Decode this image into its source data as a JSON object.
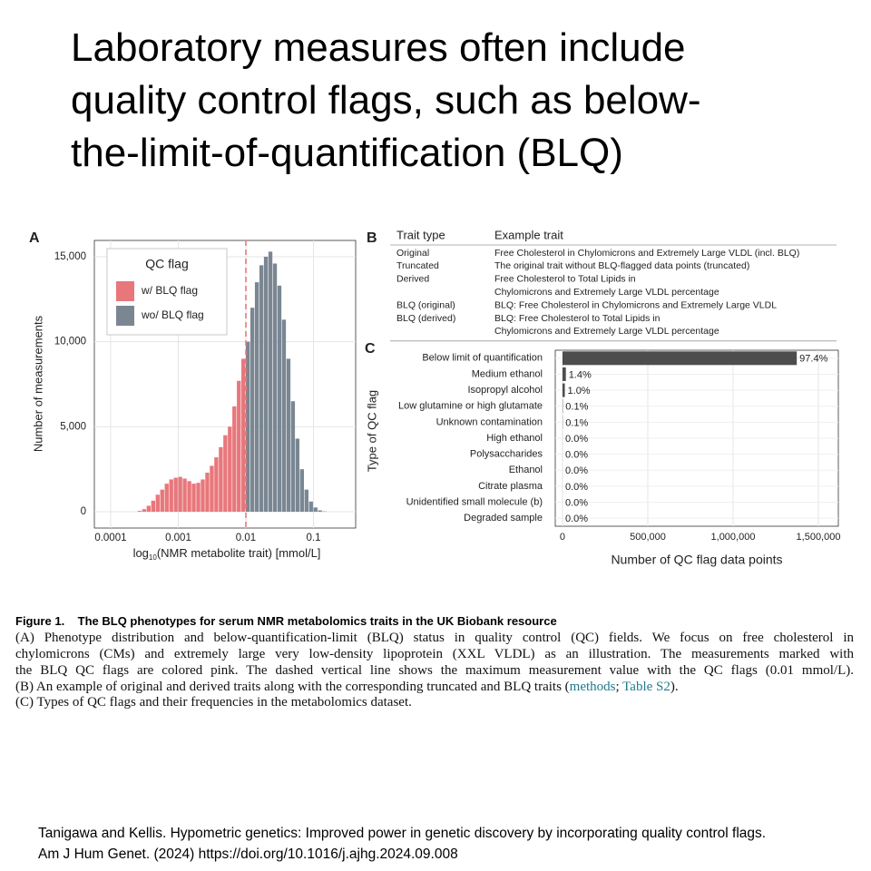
{
  "title": [
    "Laboratory measures often include",
    "quality control flags, such as below-",
    "the-limit-of-quantification (BLQ)"
  ],
  "chart_data": [
    {
      "type": "histogram",
      "panel_label": "A",
      "bins": [
        0.000251,
        0.000293,
        0.000341,
        0.000398,
        0.000464,
        0.000541,
        0.000631,
        0.000736,
        0.000858,
        0.001,
        0.001166,
        0.001359,
        0.001585,
        0.001848,
        0.002154,
        0.002512,
        0.002929,
        0.003415,
        0.003981,
        0.004642,
        0.005412,
        0.00631,
        0.007356,
        0.008577,
        0.01,
        0.01166,
        0.01359,
        0.01585,
        0.01848,
        0.02154,
        0.02512,
        0.02929,
        0.03415,
        0.03981,
        0.04642,
        0.05412,
        0.0631,
        0.07356,
        0.08577,
        0.1,
        0.1166,
        0.1359,
        0.1585
      ],
      "series": [
        {
          "name": "w/ BLQ flag",
          "color": "#e8777c",
          "values": [
            50,
            150,
            350,
            650,
            1000,
            1300,
            1650,
            1900,
            2000,
            2050,
            1950,
            1800,
            1650,
            1700,
            1900,
            2300,
            2700,
            3200,
            3800,
            4500,
            5000,
            6200,
            7700,
            9000,
            0,
            0,
            0,
            0,
            0,
            0,
            0,
            0,
            0,
            0,
            0,
            0,
            0,
            0,
            0,
            0,
            0,
            0
          ]
        },
        {
          "name": "wo/ BLQ flag",
          "color": "#7a8793",
          "values": [
            0,
            0,
            0,
            0,
            0,
            0,
            0,
            0,
            0,
            0,
            0,
            0,
            0,
            0,
            0,
            0,
            0,
            0,
            0,
            0,
            0,
            0,
            0,
            0,
            10000,
            12000,
            13500,
            14500,
            15000,
            15300,
            14600,
            13300,
            11300,
            9000,
            6500,
            4300,
            2500,
            1300,
            600,
            250,
            80,
            20
          ]
        }
      ],
      "xlim": [
        5.75e-05,
        0.42
      ],
      "log_x": true,
      "xticks": [
        0.0001,
        0.001,
        0.01,
        0.1
      ],
      "ylim": [
        -960,
        15960
      ],
      "yticks": [
        0,
        {
          "value": 5000,
          "label": "5,000"
        },
        {
          "value": 10000,
          "label": "10,000"
        },
        {
          "value": 15000,
          "label": "15,000"
        }
      ],
      "x_label": {
        "log": "log",
        "base": "10",
        "rest": "(NMR metabolite trait) [mmol/L]"
      },
      "y_label": "Number of measurements",
      "legend_title": "QC flag",
      "legend": "top-left",
      "grid": true,
      "vline": 0.01,
      "vline_color": "#e8777c"
    },
    {
      "type": "barh",
      "panel_label": "C",
      "categories": [
        "Below limit of quantification",
        "Medium ethanol",
        "Isopropyl alcohol",
        "Low glutamine or high glutamate",
        "Unknown contamination",
        "High ethanol",
        "Polysaccharides",
        "Ethanol",
        "Citrate plasma",
        "Unidentified small molecule (b)",
        "Degraded sample"
      ],
      "values": [
        1373300,
        19700,
        13500,
        1700,
        1100,
        250,
        150,
        100,
        80,
        60,
        20
      ],
      "value_labels": [
        "97.4%",
        "1.4%",
        "1.0%",
        "0.1%",
        "0.1%",
        "0.0%",
        "0.0%",
        "0.0%",
        "0.0%",
        "0.0%",
        "0.0%"
      ],
      "color": "#4d4d4d",
      "xlim": [
        -42500,
        1617000
      ],
      "xticks": [
        0,
        {
          "value": 500000,
          "label": "500,000"
        },
        {
          "value": 1000000,
          "label": "1,000,000"
        },
        {
          "value": 1500000,
          "label": "1,500,000"
        }
      ],
      "x_label": "Number of QC flag data points",
      "y_label": "Type of QC flag",
      "grid": true
    }
  ],
  "table_b": {
    "panel_label": "B",
    "columns": [
      "Trait type",
      "Example trait"
    ],
    "rows": [
      {
        "type": "Original",
        "example": [
          "Free Cholesterol in Chylomicrons and Extremely Large VLDL (incl. BLQ)"
        ]
      },
      {
        "type": "Truncated",
        "example": [
          "The original trait without BLQ-flagged data points (truncated)"
        ]
      },
      {
        "type": "Derived",
        "example": [
          "Free Cholesterol to Total Lipids in",
          "Chylomicrons and Extremely Large VLDL percentage"
        ]
      },
      {
        "type": "BLQ (original)",
        "example": [
          "BLQ: Free Cholesterol in Chylomicrons and Extremely Large VLDL"
        ]
      },
      {
        "type": "BLQ (derived)",
        "example": [
          "BLQ: Free Cholesterol to Total Lipids in",
          "Chylomicrons and Extremely Large VLDL percentage"
        ]
      }
    ]
  },
  "caption": {
    "label": "Figure 1.",
    "heading": "The BLQ phenotypes for serum NMR metabolomics traits in the UK Biobank resource",
    "lines": [
      "(A) Phenotype distribution and below-quantification-limit (BLQ) status in quality control (QC) fields. We focus on free cholesterol in",
      "chylomicrons (CMs) and extremely large very low-density lipoprotein (XXL VLDL) as an illustration. The measurements marked with",
      "the BLQ QC flags are colored pink. The dashed vertical line shows the maximum measurement value with the QC flags (0.01 mmol/L)."
    ],
    "line_b": [
      "(B) An example of original and derived traits along with the corresponding truncated and BLQ traits (",
      "methods",
      "; ",
      "Table S2",
      ")."
    ],
    "line_c": "(C) Types of QC flags and their frequencies in the metabolomics dataset."
  },
  "citation": [
    "Tanigawa and Kellis. Hypometric genetics: Improved power in genetic discovery by incorporating quality control flags.",
    "Am J Hum Genet. (2024) https://doi.org/10.1016/j.ajhg.2024.09.008"
  ]
}
